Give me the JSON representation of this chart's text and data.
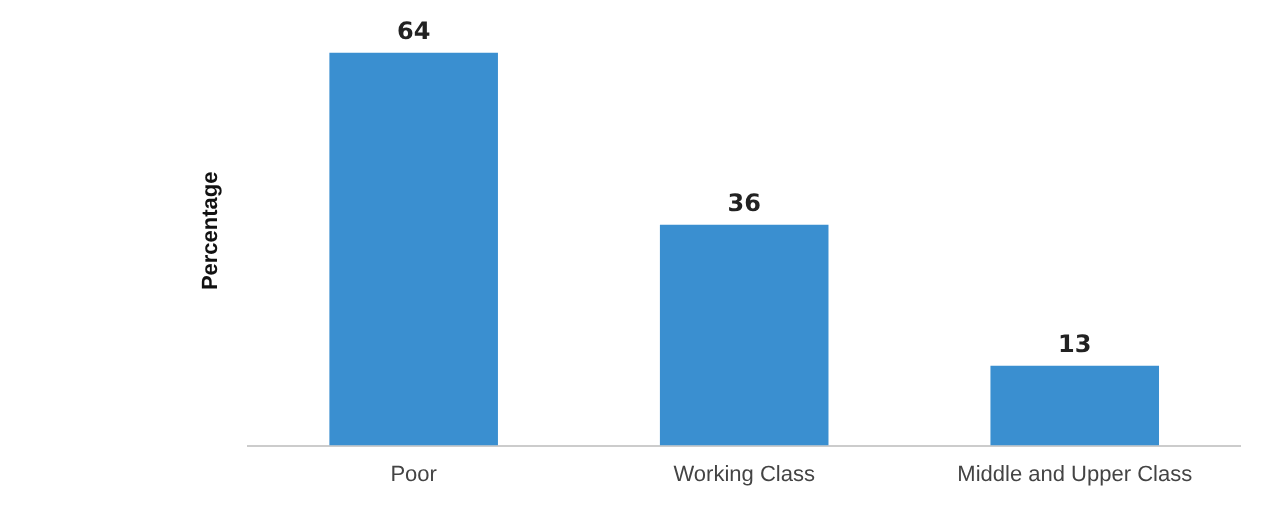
{
  "chart_data": {
    "type": "bar",
    "ylabel": "Percentage",
    "categories": [
      "Poor",
      "Working Class",
      "Middle and Upper Class"
    ],
    "values": [
      64,
      36,
      13
    ],
    "color": "#3a8fd0",
    "data_labels": true,
    "grid": false,
    "legend": false
  }
}
